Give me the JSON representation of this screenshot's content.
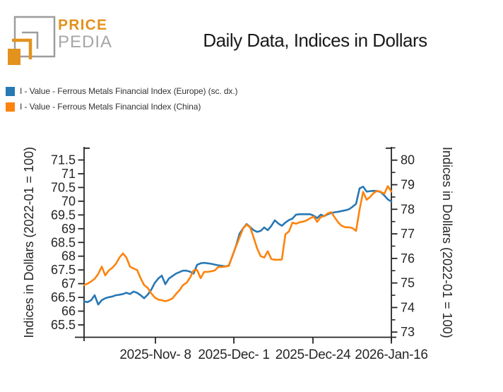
{
  "logo": {
    "price": "PRICE",
    "pedia": "PEDIA",
    "brand_orange": "#e2921d",
    "brand_gray": "#9d9d9d"
  },
  "header": {
    "title": "Daily Data, Indices in Dollars"
  },
  "chart_data": {
    "type": "line",
    "title": "Daily Data, Indices in Dollars",
    "grid": false,
    "legend_position": "top-left",
    "axis_color": "#262626",
    "x_axis": {
      "tick_labels": [
        "2025-Nov- 8",
        "2025-Dec- 1",
        "2025-Dec-24",
        "2026-Jan-16"
      ],
      "tick_positions": [
        0.2322,
        0.4874,
        0.7448,
        1.0
      ]
    },
    "y_left": {
      "label": "Indices in Dollars (2022-01 = 100)",
      "ticks": [
        65.5,
        66,
        66.5,
        67,
        67.5,
        68,
        68.5,
        69,
        69.5,
        70,
        70.5,
        71,
        71.5
      ],
      "lim": [
        65.05,
        71.95
      ]
    },
    "y_right": {
      "label": "Indices in Dollars (2022-01 = 100)",
      "ticks": [
        73,
        74,
        75,
        76,
        77,
        78,
        79,
        80
      ],
      "minor_step": 0.5,
      "lim": [
        72.79,
        80.51
      ]
    },
    "series": [
      {
        "name": "I - Value - Ferrous Metals Financial Index (Europe) (sc. dx.)",
        "axis": "right",
        "color": "#2878b4",
        "values": [
          74.25,
          74.22,
          74.3,
          74.5,
          74.12,
          74.3,
          74.38,
          74.42,
          74.45,
          74.5,
          74.52,
          74.55,
          74.6,
          74.55,
          74.65,
          74.6,
          74.5,
          74.38,
          74.52,
          74.72,
          75.0,
          75.18,
          75.3,
          74.95,
          75.18,
          75.28,
          75.38,
          75.44,
          75.5,
          75.5,
          75.46,
          75.38,
          75.74,
          75.8,
          75.82,
          75.8,
          75.78,
          75.75,
          75.72,
          75.7,
          75.67,
          75.72,
          76.1,
          76.5,
          77.0,
          77.22,
          77.4,
          77.28,
          77.15,
          77.08,
          77.12,
          77.26,
          77.15,
          77.32,
          77.55,
          77.42,
          77.33,
          77.46,
          77.56,
          77.62,
          77.78,
          77.8,
          77.8,
          77.8,
          77.8,
          77.74,
          77.64,
          77.78,
          77.72,
          77.8,
          77.85,
          77.88,
          77.9,
          77.93,
          77.96,
          78.0,
          78.1,
          78.22,
          78.85,
          78.92,
          78.72,
          78.74,
          78.75,
          78.74,
          78.7,
          78.56,
          78.4,
          78.32
        ]
      },
      {
        "name": "I - Value - Ferrous Metals Financial Index (China)",
        "axis": "left",
        "color": "#fd830d",
        "values": [
          66.95,
          67.0,
          67.08,
          67.18,
          67.35,
          67.62,
          67.3,
          67.48,
          67.58,
          67.72,
          67.95,
          68.1,
          67.95,
          67.62,
          67.55,
          67.5,
          67.2,
          66.95,
          66.85,
          66.65,
          66.5,
          66.42,
          66.4,
          66.36,
          66.4,
          66.46,
          66.62,
          66.76,
          66.95,
          67.03,
          67.22,
          67.48,
          67.5,
          67.2,
          67.43,
          67.43,
          67.45,
          67.48,
          67.61,
          67.61,
          67.62,
          67.65,
          68.02,
          68.35,
          68.68,
          69.0,
          69.15,
          69.05,
          68.68,
          68.28,
          68.0,
          67.95,
          68.18,
          67.9,
          67.87,
          67.87,
          67.88,
          68.8,
          68.9,
          69.22,
          69.18,
          69.23,
          69.26,
          69.3,
          69.38,
          69.44,
          69.25,
          69.42,
          69.46,
          69.56,
          69.6,
          69.4,
          69.22,
          69.1,
          69.05,
          69.05,
          69.02,
          68.92,
          69.7,
          70.34,
          70.05,
          70.16,
          70.3,
          70.38,
          70.34,
          70.27,
          70.55,
          70.35
        ]
      }
    ]
  }
}
